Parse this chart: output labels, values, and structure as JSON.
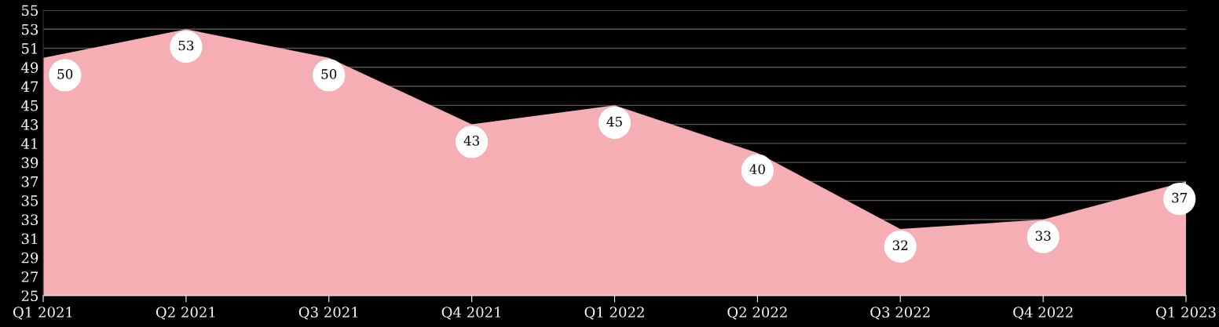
{
  "chart_data": {
    "type": "area",
    "categories": [
      "Q1 2021",
      "Q2 2021",
      "Q3 2021",
      "Q4 2021",
      "Q1 2022",
      "Q2 2022",
      "Q3 2022",
      "Q4 2022",
      "Q1 2023"
    ],
    "series": [
      {
        "color": "#f4aeb4",
        "values": [
          50,
          53,
          50,
          43,
          45,
          40,
          32,
          33,
          37
        ]
      }
    ],
    "ylim": [
      25,
      55
    ],
    "yticks": [
      25,
      27,
      29,
      31,
      33,
      35,
      37,
      39,
      41,
      43,
      45,
      47,
      49,
      51,
      53,
      55
    ],
    "grid": "y",
    "data_labels": true,
    "legend": false
  }
}
